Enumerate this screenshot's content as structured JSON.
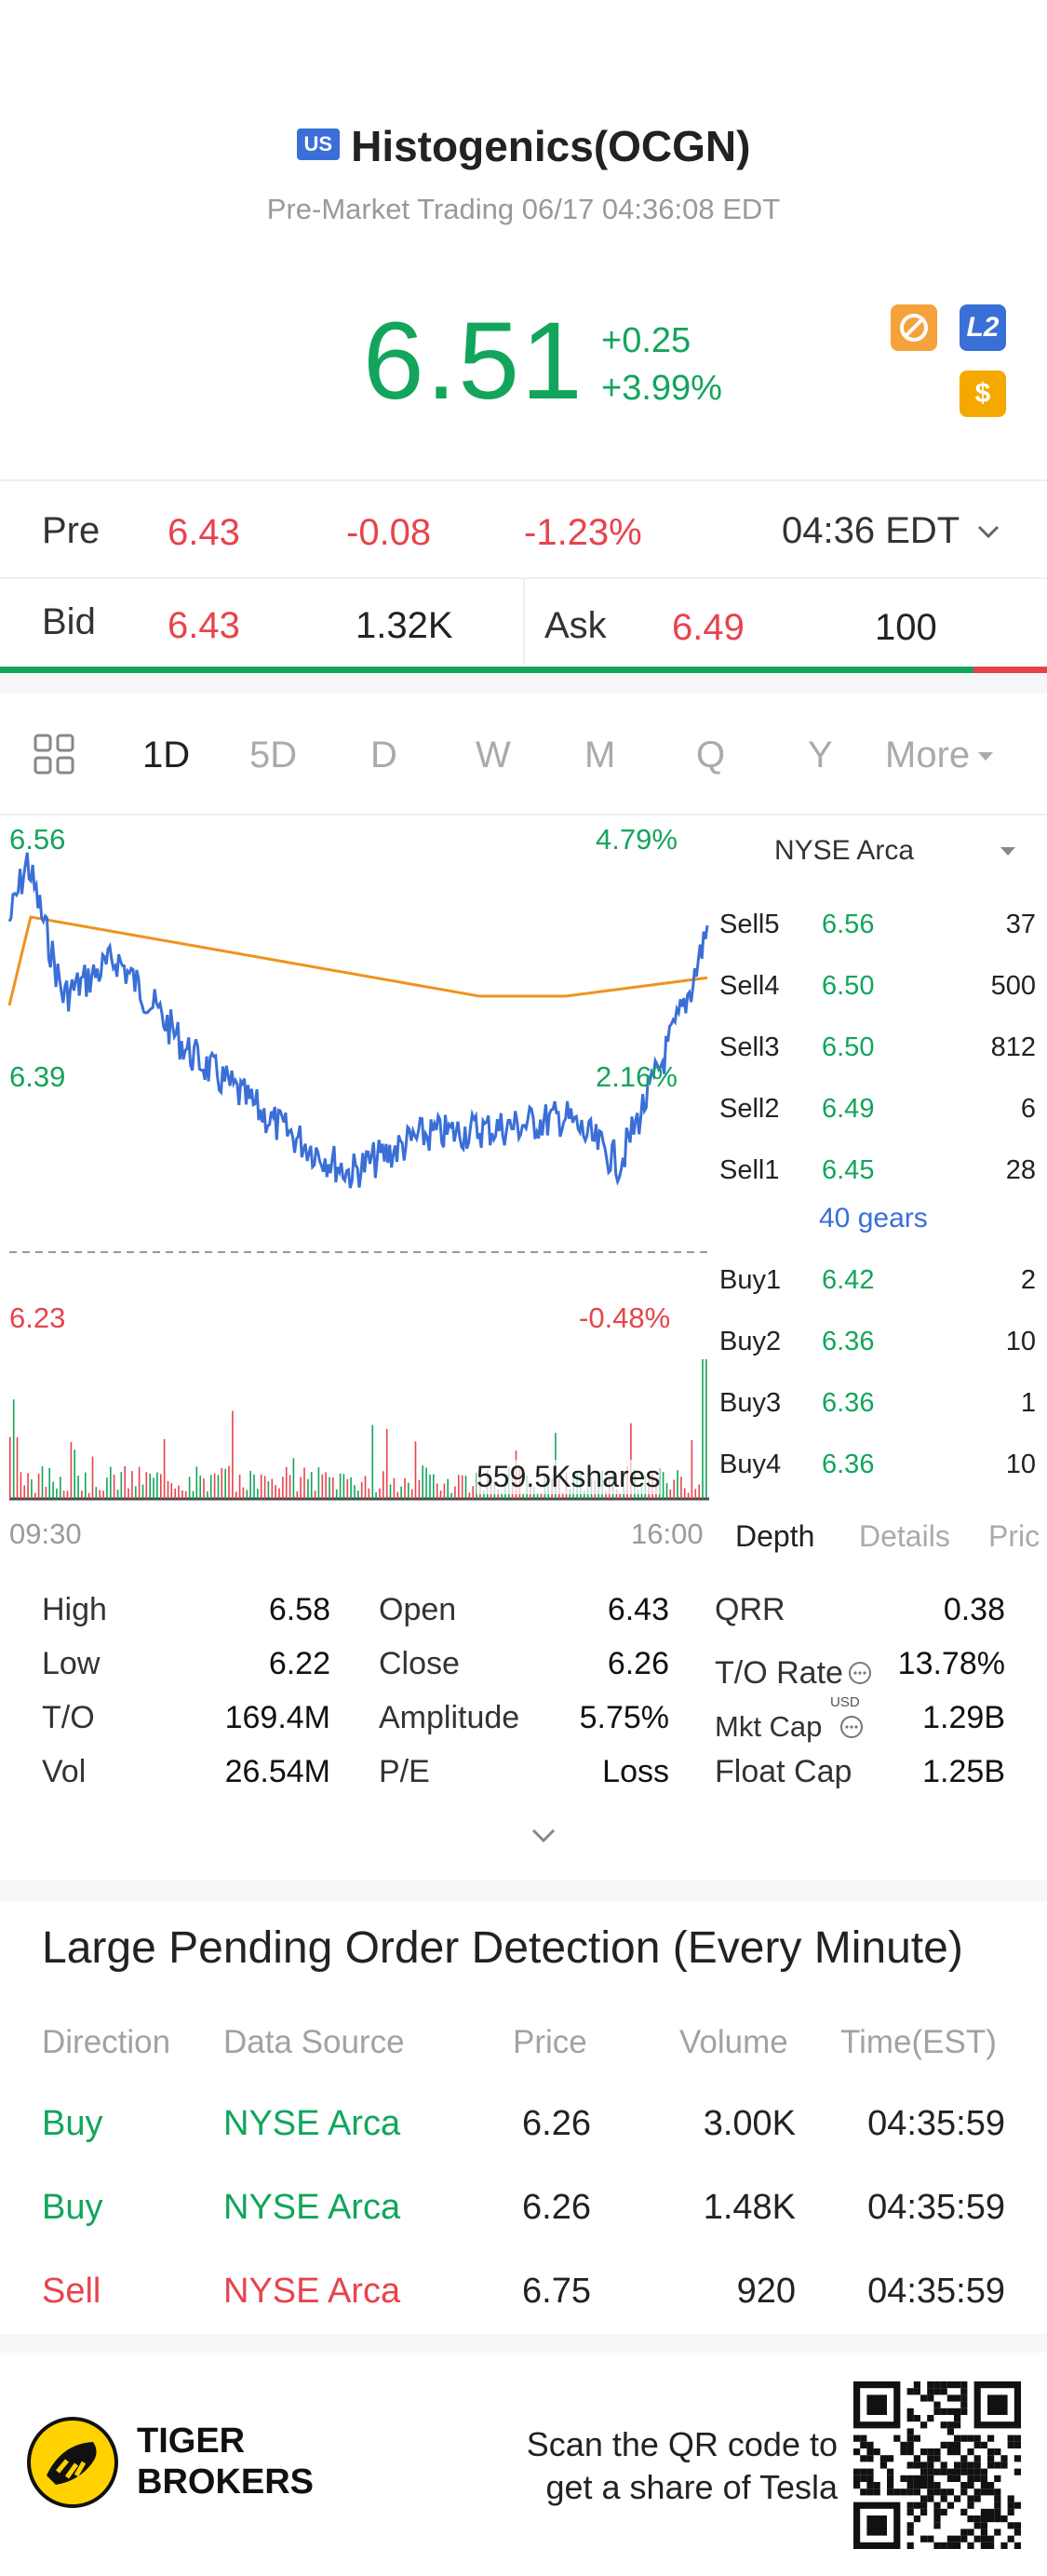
{
  "header": {
    "market_badge": "US",
    "title": "Histogenics(OCGN)",
    "subtitle": "Pre-Market Trading 06/17 04:36:08 EDT",
    "price": "6.51",
    "change": "+0.25",
    "change_pct": "+3.99%",
    "badges": [
      "no-short-icon",
      "L2",
      "$"
    ]
  },
  "pre_row": {
    "label": "Pre",
    "price": "6.43",
    "change": "-0.08",
    "change_pct": "-1.23%",
    "time": "04:36 EDT"
  },
  "bid_ask": {
    "bid_label": "Bid",
    "bid_price": "6.43",
    "bid_size": "1.32K",
    "ask_label": "Ask",
    "ask_price": "6.49",
    "ask_size": "100",
    "bid_ratio": 0.93
  },
  "tabs": [
    "1D",
    "5D",
    "D",
    "W",
    "M",
    "Q",
    "Y",
    "More"
  ],
  "active_tab": "1D",
  "chart": {
    "high_label": "6.56",
    "high_pct": "4.79%",
    "mid_label": "6.39",
    "mid_pct": "2.16%",
    "low_label": "6.23",
    "low_pct": "-0.48%",
    "volume_label": "559.5Kshares",
    "time_start": "09:30",
    "time_end": "16:00"
  },
  "order_book": {
    "exchange": "NYSE Arca",
    "sells": [
      {
        "label": "Sell5",
        "price": "6.56",
        "qty": "37"
      },
      {
        "label": "Sell4",
        "price": "6.50",
        "qty": "500"
      },
      {
        "label": "Sell3",
        "price": "6.50",
        "qty": "812"
      },
      {
        "label": "Sell2",
        "price": "6.49",
        "qty": "6"
      },
      {
        "label": "Sell1",
        "price": "6.45",
        "qty": "28"
      }
    ],
    "gears": "40 gears",
    "buys": [
      {
        "label": "Buy1",
        "price": "6.42",
        "qty": "2"
      },
      {
        "label": "Buy2",
        "price": "6.36",
        "qty": "10"
      },
      {
        "label": "Buy3",
        "price": "6.36",
        "qty": "1"
      },
      {
        "label": "Buy4",
        "price": "6.36",
        "qty": "10"
      }
    ],
    "tabs": [
      "Depth",
      "Details",
      "Pric"
    ]
  },
  "stats": {
    "col1": [
      {
        "label": "High",
        "value": "6.58"
      },
      {
        "label": "Low",
        "value": "6.22"
      },
      {
        "label": "T/O",
        "value": "169.4M"
      },
      {
        "label": "Vol",
        "value": "26.54M"
      }
    ],
    "col2": [
      {
        "label": "Open",
        "value": "6.43"
      },
      {
        "label": "Close",
        "value": "6.26"
      },
      {
        "label": "Amplitude",
        "value": "5.75%"
      },
      {
        "label": "P/E",
        "value": "Loss"
      }
    ],
    "col3": [
      {
        "label": "QRR",
        "value": "0.38"
      },
      {
        "label": "T/O Rate",
        "value": "13.78%"
      },
      {
        "label": "Mkt Cap",
        "value": "1.29B",
        "sup": "USD"
      },
      {
        "label": "Float Cap",
        "value": "1.25B"
      }
    ]
  },
  "large_orders": {
    "title": "Large Pending Order Detection (Every Minute)",
    "headers": [
      "Direction",
      "Data Source",
      "Price",
      "Volume",
      "Time(EST)"
    ],
    "rows": [
      {
        "direction": "Buy",
        "source": "NYSE Arca",
        "price": "6.26",
        "volume": "3.00K",
        "time": "04:35:59",
        "side": "buy"
      },
      {
        "direction": "Buy",
        "source": "NYSE Arca",
        "price": "6.26",
        "volume": "1.48K",
        "time": "04:35:59",
        "side": "buy"
      },
      {
        "direction": "Sell",
        "source": "NYSE Arca",
        "price": "6.75",
        "volume": "920",
        "time": "04:35:59",
        "side": "sell"
      }
    ]
  },
  "footer": {
    "brand_line1": "TIGER",
    "brand_line2": "BROKERS",
    "qr_text1": "Scan the QR code to",
    "qr_text2": "get a share of Tesla"
  },
  "colors": {
    "up": "#12a55b",
    "down": "#e8434b",
    "line": "#3a6fd8",
    "avg": "#f0921e"
  }
}
